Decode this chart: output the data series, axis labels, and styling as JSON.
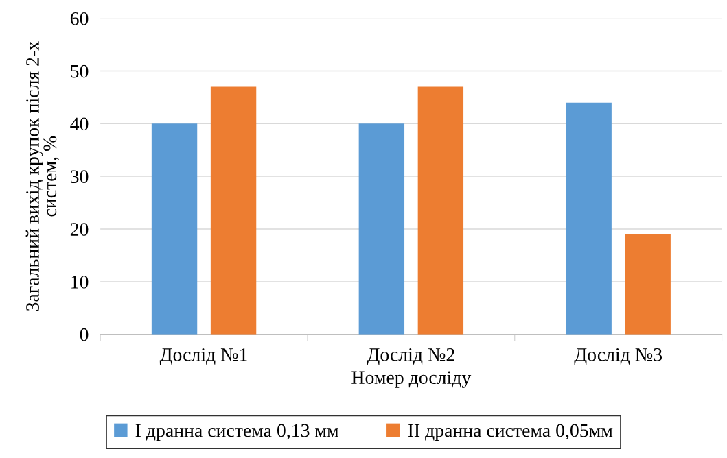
{
  "chart_data": {
    "type": "bar",
    "xlabel": "Номер досліду",
    "ylabel": "Загальний вихід крупок після 2-х\nсистем, %",
    "categories": [
      "Дослід №1",
      "Дослід №2",
      "Дослід №3"
    ],
    "series": [
      {
        "name": "І дранна система 0,13 мм",
        "color": "#5b9bd5",
        "values": [
          40,
          40,
          44
        ]
      },
      {
        "name": "ІІ дранна система 0,05мм",
        "color": "#ed7d31",
        "values": [
          47,
          47,
          19
        ]
      }
    ],
    "ylim": [
      0,
      60
    ],
    "yticks": [
      0,
      10,
      20,
      30,
      40,
      50,
      60
    ],
    "grid": "y",
    "legend": "bottom"
  }
}
